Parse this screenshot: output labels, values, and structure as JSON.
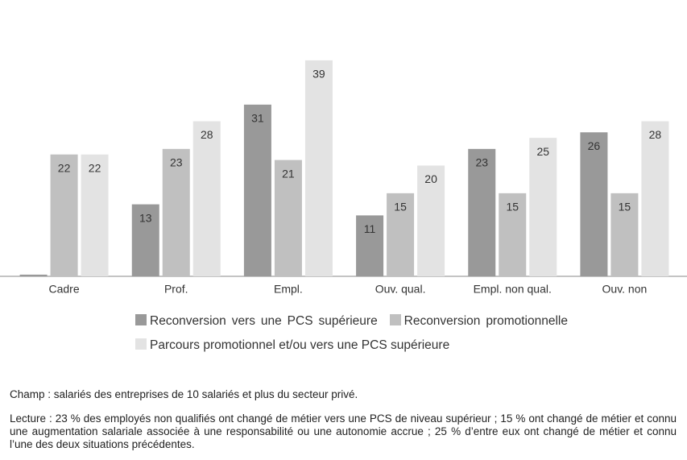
{
  "chart_data": {
    "type": "bar",
    "categories": [
      "Cadre",
      "Prof.",
      "Empl.",
      "Ouv. qual.",
      "Empl. non qual.",
      "Ouv. non"
    ],
    "series": [
      {
        "name": "Reconversion vers une PCS supérieure",
        "color": "#999999",
        "values": [
          0.3,
          13,
          31,
          11,
          23,
          26
        ],
        "value_labels": [
          null,
          "13",
          "31",
          "11",
          "23",
          "26"
        ]
      },
      {
        "name": "Reconversion promotionnelle",
        "color": "#c0c0c0",
        "values": [
          22,
          23,
          21,
          15,
          15,
          15
        ]
      },
      {
        "name": "Parcours promotionnel et/ou vers une PCS supérieure",
        "color": "#e3e3e3",
        "values": [
          22,
          28,
          39,
          20,
          25,
          28
        ]
      }
    ],
    "ylim": [
      0,
      48
    ],
    "notes": [
      "Champ : salariés des entreprises de 10 salariés et plus du secteur privé.",
      "Lecture : 23 % des employés non qualifiés ont changé de métier vers une PCS de niveau supérieur ; 15 % ont changé de métier et connu une augmentation salariale associée à une responsabilité ou une autonomie accrue ; 25 % d’entre eux ont changé de métier et connu l’une des deux situations précédentes."
    ]
  }
}
